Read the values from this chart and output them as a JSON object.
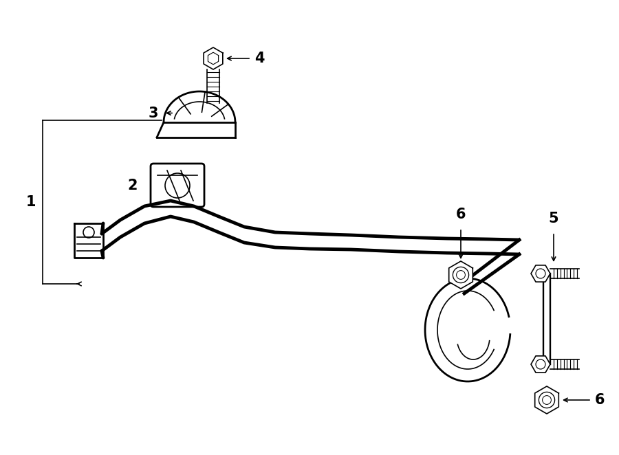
{
  "background_color": "#ffffff",
  "line_color": "#000000",
  "figure_width": 9.0,
  "figure_height": 6.62,
  "dpi": 100,
  "font_size_label": 15,
  "lw_bar": 3.5,
  "lw_main": 2.0,
  "lw_thin": 1.2
}
